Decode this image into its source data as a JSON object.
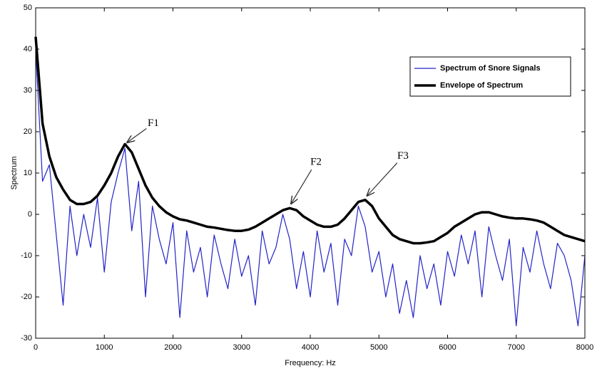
{
  "chart_data": {
    "type": "line",
    "xlabel": "Frequency: Hz",
    "ylabel": "Spectrum",
    "xlim": [
      0,
      8000
    ],
    "ylim": [
      -30,
      50
    ],
    "xticks": [
      0,
      1000,
      2000,
      3000,
      4000,
      5000,
      6000,
      7000,
      8000
    ],
    "yticks": [
      -30,
      -20,
      -10,
      0,
      10,
      20,
      30,
      40,
      50
    ],
    "grid": false,
    "legend": "upper right",
    "x": [
      0,
      100,
      200,
      300,
      400,
      500,
      600,
      700,
      800,
      900,
      1000,
      1100,
      1200,
      1300,
      1400,
      1500,
      1600,
      1700,
      1800,
      1900,
      2000,
      2100,
      2200,
      2300,
      2400,
      2500,
      2600,
      2700,
      2800,
      2900,
      3000,
      3100,
      3200,
      3300,
      3400,
      3500,
      3600,
      3700,
      3800,
      3900,
      4000,
      4100,
      4200,
      4300,
      4400,
      4500,
      4600,
      4700,
      4800,
      4900,
      5000,
      5100,
      5200,
      5300,
      5400,
      5500,
      5600,
      5700,
      5800,
      5900,
      6000,
      6100,
      6200,
      6300,
      6400,
      6500,
      6600,
      6700,
      6800,
      6900,
      7000,
      7100,
      7200,
      7300,
      7400,
      7500,
      7600,
      7700,
      7800,
      7900,
      8000
    ],
    "series": [
      {
        "name": "Spectrum of Snore Signals",
        "color": "#2323c8",
        "width": 1.2,
        "values": [
          40,
          8,
          12,
          -5,
          -22,
          2,
          -10,
          0,
          -8,
          4,
          -14,
          3,
          10,
          16,
          -4,
          8,
          -20,
          2,
          -6,
          -12,
          -2,
          -25,
          -4,
          -14,
          -8,
          -20,
          -5,
          -12,
          -18,
          -6,
          -15,
          -10,
          -22,
          -4,
          -12,
          -8,
          0,
          -6,
          -18,
          -9,
          -20,
          -4,
          -14,
          -7,
          -22,
          -6,
          -10,
          2,
          -3,
          -14,
          -9,
          -20,
          -12,
          -24,
          -16,
          -25,
          -10,
          -18,
          -12,
          -22,
          -9,
          -15,
          -5,
          -12,
          -4,
          -20,
          -3,
          -10,
          -16,
          -6,
          -27,
          -8,
          -14,
          -4,
          -12,
          -18,
          -7,
          -10,
          -16,
          -27,
          -10
        ]
      },
      {
        "name": "Envelope of Spectrum",
        "color": "#000000",
        "width": 3.5,
        "values": [
          43,
          22,
          14,
          9,
          6,
          3.5,
          2.5,
          2.5,
          3,
          4.5,
          7,
          10,
          14,
          17,
          15,
          11,
          7,
          4,
          2,
          0.5,
          -0.5,
          -1.2,
          -1.5,
          -2,
          -2.5,
          -3,
          -3.2,
          -3.5,
          -3.8,
          -4,
          -4,
          -3.7,
          -3,
          -2,
          -1,
          0,
          1,
          1.5,
          1,
          -0.5,
          -1.5,
          -2.5,
          -3,
          -3,
          -2.5,
          -1,
          1,
          3,
          3.5,
          2,
          -1,
          -3,
          -5,
          -6,
          -6.5,
          -7,
          -7,
          -6.8,
          -6.5,
          -5.5,
          -4.5,
          -3,
          -2,
          -1,
          0,
          0.5,
          0.5,
          0,
          -0.5,
          -0.8,
          -1,
          -1,
          -1.2,
          -1.5,
          -2,
          -3,
          -4,
          -5,
          -5.5,
          -6,
          -6.5
        ]
      }
    ],
    "annotations": [
      {
        "text": "F1",
        "xy": [
          1300,
          17
        ],
        "xytext": [
          1714,
          22
        ]
      },
      {
        "text": "F2",
        "xy": [
          3700,
          2
        ],
        "xytext": [
          4083,
          12.6
        ]
      },
      {
        "text": "F3",
        "xy": [
          4800,
          4
        ],
        "xytext": [
          5350,
          14
        ]
      }
    ]
  }
}
